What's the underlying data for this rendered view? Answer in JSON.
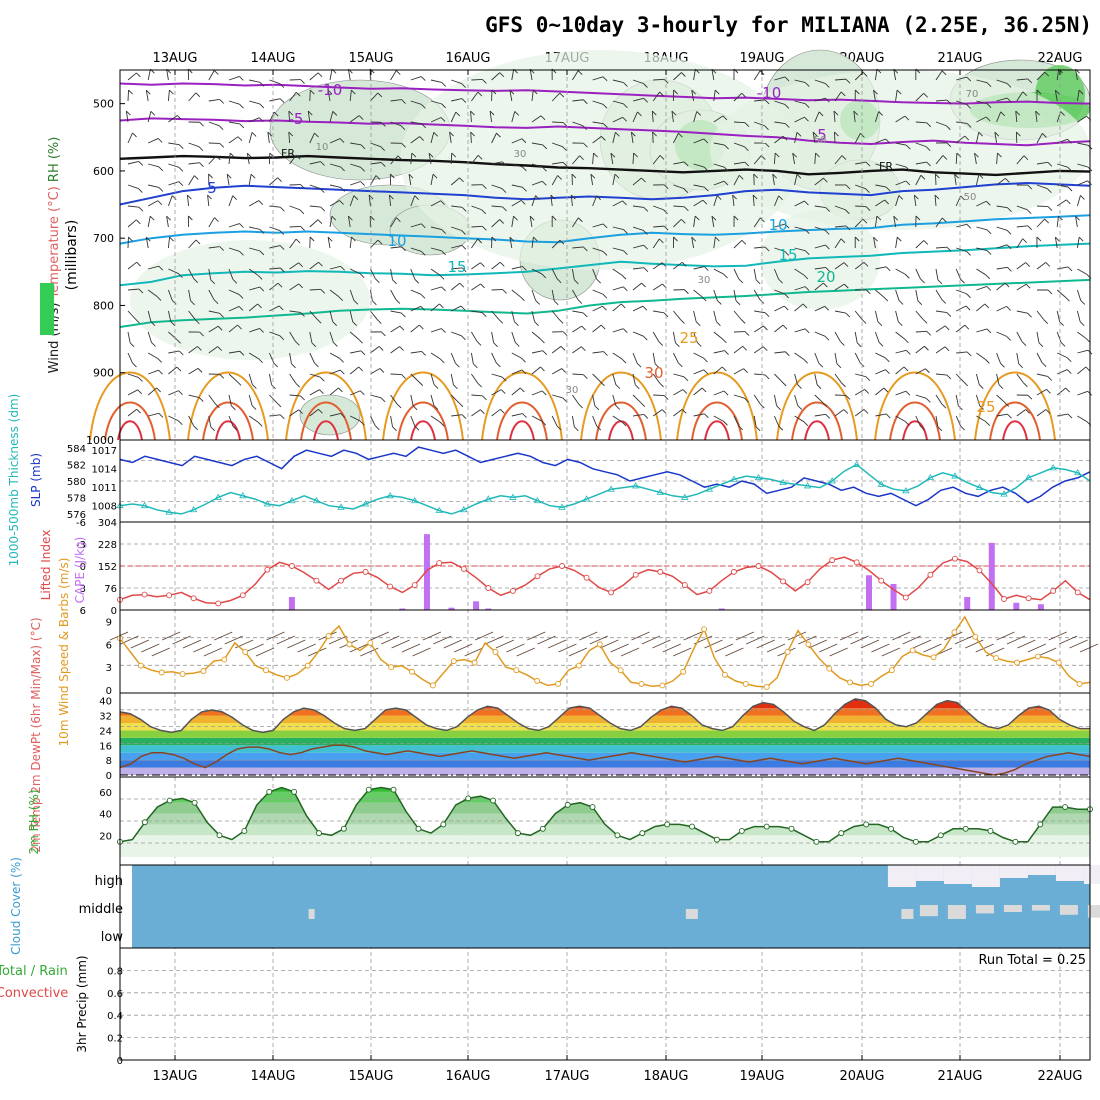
{
  "title": "GFS 0~10day 3-hourly for MILIANA (2.25E, 36.25N)",
  "dates": [
    "13AUG",
    "14AUG",
    "15AUG",
    "16AUG",
    "17AUG",
    "18AUG",
    "19AUG",
    "20AUG",
    "21AUG",
    "22AUG"
  ],
  "colors": {
    "grid": "#999999",
    "frame": "#000000",
    "rh_green": "#33cc55",
    "cloud_blue": "#6aaed6",
    "cape": "#c070f0",
    "lifted": "#e04848",
    "wind": "#e09a20",
    "rh2m": "#33aa33"
  },
  "chart_data": [
    {
      "type": "line",
      "panel": "upper-air",
      "ylabel_parts": [
        "Wind (m/s)",
        "Temperature (°C)",
        "RH (%)"
      ],
      "yunit_label": "(millibars)",
      "yticks": [
        500,
        600,
        700,
        800,
        900,
        1000
      ],
      "ylim": [
        1000,
        450
      ],
      "isotherm_labels": [
        "-10",
        "-5",
        "FR",
        "5",
        "10",
        "15",
        "20",
        "25",
        "30",
        "-10",
        "5",
        "10",
        "15",
        "20",
        "25",
        "FR"
      ],
      "rh_labels": [
        "10",
        "30",
        "30",
        "50",
        "30",
        "70",
        "50"
      ],
      "isotherms": [
        {
          "label": "-10",
          "p": [
            470,
            472,
            470,
            471,
            473,
            472,
            474,
            476,
            478,
            477,
            479,
            480,
            481,
            480,
            482,
            484,
            486,
            488,
            490,
            492,
            491,
            493,
            495,
            494,
            496,
            498,
            499,
            500,
            498,
            497,
            499,
            500
          ]
        },
        {
          "label": "-5",
          "p": [
            525,
            522,
            523,
            524,
            526,
            525,
            527,
            528,
            530,
            529,
            531,
            533,
            535,
            536,
            534,
            536,
            538,
            540,
            542,
            545,
            548,
            550,
            555,
            558,
            560,
            557,
            555,
            558,
            560,
            562,
            558,
            556
          ]
        },
        {
          "label": "FR",
          "p": [
            582,
            580,
            578,
            579,
            581,
            580,
            578,
            580,
            582,
            584,
            585,
            587,
            590,
            592,
            595,
            596,
            598,
            600,
            602,
            600,
            598,
            600,
            605,
            603,
            600,
            598,
            602,
            604,
            606,
            603,
            600,
            601
          ]
        },
        {
          "label": "5",
          "p": [
            650,
            640,
            630,
            625,
            622,
            624,
            626,
            628,
            630,
            632,
            634,
            636,
            640,
            642,
            640,
            638,
            640,
            642,
            640,
            636,
            630,
            628,
            632,
            634,
            636,
            630,
            628,
            624,
            620,
            618,
            620,
            622
          ]
        },
        {
          "label": "10",
          "p": [
            708,
            700,
            695,
            692,
            690,
            692,
            690,
            692,
            694,
            696,
            698,
            700,
            702,
            705,
            706,
            700,
            695,
            692,
            694,
            695,
            693,
            690,
            688,
            686,
            685,
            680,
            678,
            675,
            672,
            670,
            668,
            666
          ]
        },
        {
          "label": "15",
          "p": [
            770,
            765,
            755,
            752,
            750,
            751,
            749,
            750,
            752,
            753,
            755,
            754,
            752,
            750,
            745,
            740,
            735,
            738,
            740,
            742,
            741,
            735,
            730,
            728,
            726,
            722,
            720,
            718,
            715,
            712,
            710,
            708
          ]
        },
        {
          "label": "20",
          "p": [
            832,
            825,
            822,
            820,
            818,
            815,
            812,
            808,
            806,
            805,
            806,
            808,
            810,
            812,
            808,
            800,
            795,
            793,
            790,
            788,
            786,
            783,
            780,
            778,
            776,
            774,
            772,
            770,
            768,
            766,
            764,
            762
          ]
        }
      ],
      "wind_note": "barbs at each pressure level every 3 hours"
    },
    {
      "type": "line",
      "panel": "thickness-slp",
      "ylabel_left": "1000-500mb Thickness (dm)",
      "ylabel_right": "SLP (mb)",
      "yticks_left": [
        576,
        578,
        580,
        582,
        584
      ],
      "yticks_right": [
        1008,
        1011,
        1014,
        1017
      ],
      "series": [
        {
          "name": "SLP (mb)",
          "color": "#1a36c8",
          "values": [
            1015.5,
            1015.0,
            1016.0,
            1015.5,
            1015.0,
            1014.5,
            1016.0,
            1015.5,
            1015.0,
            1014.5,
            1015.5,
            1016.0,
            1015.0,
            1014.0,
            1016.0,
            1017.0,
            1016.5,
            1016.0,
            1017.0,
            1016.5,
            1015.5,
            1016.0,
            1016.5,
            1016.0,
            1017.5,
            1017.0,
            1016.5,
            1017.0,
            1016.0,
            1015.0,
            1015.5,
            1016.0,
            1016.5,
            1016.0,
            1015.0,
            1014.5,
            1015.5,
            1015.0,
            1014.0,
            1013.5,
            1013.0,
            1012.0,
            1012.5,
            1013.0,
            1013.5,
            1013.0,
            1012.0,
            1011.0,
            1011.5,
            1011.0,
            1012.0,
            1011.5,
            1010.0,
            1010.5,
            1011.0,
            1012.5,
            1012.0,
            1011.5,
            1010.5,
            1011.0,
            1010.0,
            1009.5,
            1010.0,
            1009.0,
            1008.0,
            1009.0,
            1010.5,
            1011.0,
            1010.0,
            1009.5,
            1010.5,
            1011.0,
            1010.0,
            1008.5,
            1009.5,
            1011.0,
            1012.0,
            1012.5,
            1013.5
          ]
        },
        {
          "name": "1000-500mb Thickness (dm)",
          "color": "#20b8b8",
          "values": [
            577.0,
            577.2,
            577.0,
            576.5,
            576.2,
            576.0,
            576.5,
            577.2,
            578.0,
            578.6,
            578.2,
            577.8,
            577.2,
            577.0,
            577.6,
            578.2,
            577.6,
            577.0,
            576.8,
            576.6,
            577.2,
            577.8,
            578.2,
            578.0,
            577.6,
            577.0,
            576.4,
            576.0,
            576.5,
            577.2,
            577.8,
            578.2,
            578.0,
            578.2,
            577.6,
            577.0,
            576.8,
            577.2,
            577.8,
            578.4,
            579.0,
            579.2,
            579.4,
            579.0,
            578.6,
            578.2,
            578.0,
            578.4,
            579.0,
            579.6,
            580.2,
            580.6,
            580.4,
            580.2,
            579.8,
            579.6,
            579.4,
            579.2,
            580.0,
            581.2,
            582.0,
            580.8,
            579.6,
            579.0,
            578.8,
            579.4,
            580.4,
            581.0,
            580.6,
            579.8,
            579.2,
            578.6,
            578.4,
            579.2,
            580.4,
            581.0,
            581.6,
            581.4,
            581.0,
            580.0
          ]
        }
      ]
    },
    {
      "type": "bar",
      "panel": "cape-lifted",
      "ylabel_left": "Lifted Index",
      "ylabel_right": "CAPE (J/kg)",
      "yticks_li": [
        -6,
        -3,
        0,
        3,
        6
      ],
      "yticks_cape": [
        0,
        76,
        152,
        228,
        304
      ],
      "lifted_index": [
        4.6,
        4.0,
        3.9,
        4.2,
        4.0,
        3.6,
        4.4,
        5.0,
        5.1,
        4.7,
        4.0,
        2.5,
        0.5,
        -0.5,
        0.0,
        0.9,
        2.0,
        3.2,
        2.0,
        1.0,
        0.8,
        1.6,
        2.8,
        3.6,
        2.6,
        0.6,
        -0.4,
        -0.5,
        0.4,
        1.6,
        3.0,
        4.0,
        3.4,
        2.6,
        1.4,
        0.4,
        0.0,
        0.6,
        1.6,
        2.9,
        3.6,
        2.6,
        1.2,
        0.5,
        0.8,
        1.4,
        2.6,
        3.9,
        3.4,
        2.0,
        0.8,
        0.2,
        0.0,
        0.8,
        2.1,
        3.4,
        2.2,
        0.4,
        -0.8,
        -1.2,
        -0.5,
        0.6,
        2.0,
        3.2,
        4.3,
        3.0,
        1.2,
        -0.4,
        -1.0,
        -0.6,
        0.6,
        2.4,
        4.5,
        4.0,
        4.4,
        4.6,
        3.4,
        2.0,
        3.6,
        4.6
      ],
      "cape_bars": [
        {
          "x": 14,
          "v": 45
        },
        {
          "x": 23,
          "v": 5
        },
        {
          "x": 25,
          "v": 262
        },
        {
          "x": 27,
          "v": 8
        },
        {
          "x": 29,
          "v": 30
        },
        {
          "x": 30,
          "v": 5
        },
        {
          "x": 49,
          "v": 5
        },
        {
          "x": 61,
          "v": 120
        },
        {
          "x": 63,
          "v": 90
        },
        {
          "x": 69,
          "v": 45
        },
        {
          "x": 71,
          "v": 232
        },
        {
          "x": 73,
          "v": 25
        },
        {
          "x": 75,
          "v": 20
        }
      ]
    },
    {
      "type": "line",
      "panel": "10m-wind",
      "ylabel": "10m Wind Speed & Barbs (m/s)",
      "yticks": [
        0,
        3,
        6,
        9
      ],
      "values": [
        6.8,
        5.0,
        3.2,
        2.6,
        2.3,
        2.4,
        2.1,
        2.2,
        2.5,
        3.8,
        4.0,
        6.2,
        5.0,
        3.2,
        2.6,
        2.0,
        1.6,
        2.1,
        3.2,
        5.0,
        7.1,
        8.4,
        6.0,
        5.2,
        6.2,
        4.0,
        3.0,
        3.2,
        2.4,
        1.4,
        0.6,
        2.2,
        3.8,
        4.0,
        3.6,
        6.2,
        5.0,
        3.0,
        2.6,
        2.0,
        1.2,
        0.6,
        0.8,
        2.6,
        3.2,
        5.2,
        6.0,
        3.6,
        2.6,
        1.0,
        0.8,
        0.5,
        0.6,
        1.2,
        2.4,
        5.4,
        8.0,
        4.2,
        2.0,
        1.2,
        0.8,
        0.5,
        0.4,
        1.6,
        5.0,
        7.8,
        6.0,
        4.2,
        2.8,
        1.6,
        1.0,
        0.6,
        0.8,
        1.8,
        2.6,
        4.4,
        5.2,
        4.6,
        4.3,
        5.4,
        7.6,
        9.6,
        7.0,
        5.0,
        4.2,
        3.8,
        3.6,
        4.0,
        4.4,
        4.2,
        3.6,
        1.8,
        0.8,
        1.0
      ]
    },
    {
      "type": "area",
      "panel": "2m-temp",
      "ylabel": "2m Temp 2m DewPt (6hr Min/Max) (°C)",
      "yticks": [
        0,
        8,
        16,
        24,
        32,
        40
      ],
      "temp": [
        34,
        33,
        30,
        26,
        24,
        23,
        24,
        30,
        34,
        35,
        34,
        31,
        27,
        24,
        23,
        24,
        30,
        34,
        36,
        35,
        32,
        28,
        25,
        24,
        25,
        30,
        35,
        36,
        35,
        31,
        27,
        25,
        24,
        26,
        31,
        35,
        37,
        36,
        32,
        28,
        25,
        24,
        26,
        31,
        36,
        37,
        36,
        32,
        28,
        25,
        24,
        26,
        31,
        35,
        37,
        36,
        32,
        27,
        25,
        24,
        26,
        32,
        37,
        39,
        38,
        34,
        29,
        26,
        24,
        27,
        33,
        38,
        41,
        40,
        36,
        30,
        27,
        26,
        28,
        33,
        38,
        40,
        39,
        34,
        29,
        26,
        25,
        27,
        32,
        36,
        37,
        35,
        30,
        27,
        25,
        25
      ],
      "dewpt": [
        4,
        6,
        10,
        12,
        12,
        11,
        9,
        6,
        4,
        7,
        11,
        14,
        15,
        15,
        14,
        12,
        11,
        12,
        14,
        15,
        16,
        16,
        15,
        13,
        12,
        11,
        12,
        13,
        12,
        11,
        10,
        11,
        12,
        13,
        12,
        11,
        10,
        9,
        10,
        11,
        12,
        11,
        10,
        9,
        8,
        9,
        10,
        11,
        12,
        11,
        10,
        9,
        8,
        7,
        8,
        9,
        10,
        9,
        8,
        7,
        8,
        9,
        8,
        7,
        6,
        7,
        8,
        9,
        8,
        7,
        6,
        7,
        8,
        9,
        8,
        7,
        6,
        5,
        4,
        3,
        2,
        1,
        0,
        1,
        3,
        6,
        8,
        10,
        11,
        12,
        11,
        10
      ]
    },
    {
      "type": "area",
      "panel": "2m-rh",
      "ylabel": "2m RH (%)",
      "yticks": [
        20,
        40,
        60
      ],
      "values": [
        14,
        16,
        32,
        46,
        52,
        54,
        50,
        32,
        20,
        16,
        24,
        48,
        60,
        64,
        60,
        38,
        22,
        20,
        26,
        48,
        62,
        64,
        62,
        42,
        26,
        22,
        30,
        48,
        54,
        56,
        52,
        36,
        22,
        20,
        26,
        40,
        48,
        50,
        46,
        30,
        20,
        16,
        22,
        28,
        30,
        30,
        28,
        22,
        16,
        16,
        24,
        28,
        28,
        28,
        26,
        20,
        14,
        14,
        22,
        28,
        30,
        30,
        26,
        18,
        14,
        14,
        20,
        26,
        26,
        26,
        24,
        18,
        14,
        14,
        30,
        46,
        46,
        44,
        44
      ]
    },
    {
      "type": "heatmap",
      "panel": "cloud-cover",
      "ylabel": "Cloud Cover (%)",
      "levels": [
        "high",
        "middle",
        "low"
      ],
      "high_from_step": 57,
      "middle_patches": [
        {
          "x": 14,
          "w": 0.5
        },
        {
          "x": 42,
          "w": 1
        },
        {
          "x": 58,
          "w": 1
        }
      ],
      "run_total_label": "Run Total = 0.25"
    },
    {
      "type": "bar",
      "panel": "precip",
      "ylabel_parts": [
        "Total / Rain",
        "Convective",
        "3hr Precip (mm)"
      ],
      "yticks": [
        0,
        0.2,
        0.4,
        0.6,
        0.8
      ],
      "ylim": [
        0,
        1.0
      ],
      "values": []
    }
  ]
}
